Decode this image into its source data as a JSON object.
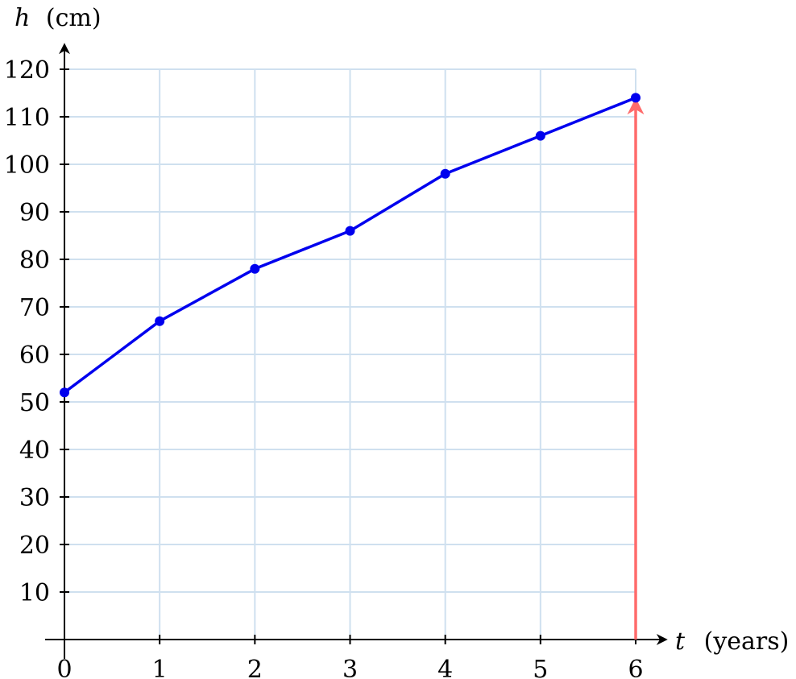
{
  "chart_data": {
    "type": "line",
    "title": "",
    "x_label": {
      "variable": "t",
      "unit": "(years)"
    },
    "y_label": {
      "variable": "h",
      "unit": "(cm)"
    },
    "xlim": [
      0,
      6
    ],
    "ylim": [
      0,
      120
    ],
    "x_ticks": [
      "0",
      "1",
      "2",
      "3",
      "4",
      "5",
      "6"
    ],
    "y_ticks": [
      "10",
      "20",
      "30",
      "40",
      "50",
      "60",
      "70",
      "80",
      "90",
      "100",
      "110",
      "120"
    ],
    "grid": true,
    "x": [
      0,
      1,
      2,
      3,
      4,
      5,
      6
    ],
    "series": [
      {
        "values": [
          52,
          67,
          78,
          86,
          98,
          106,
          114
        ]
      }
    ],
    "annotation": {
      "type": "vertical-arrow",
      "x": 6,
      "from_y": 0,
      "to_y": 114
    },
    "colors": {
      "series": "#0000ee",
      "grid": "#cfe0ef",
      "axis": "#000000",
      "arrow": "#ff6b6b"
    }
  }
}
